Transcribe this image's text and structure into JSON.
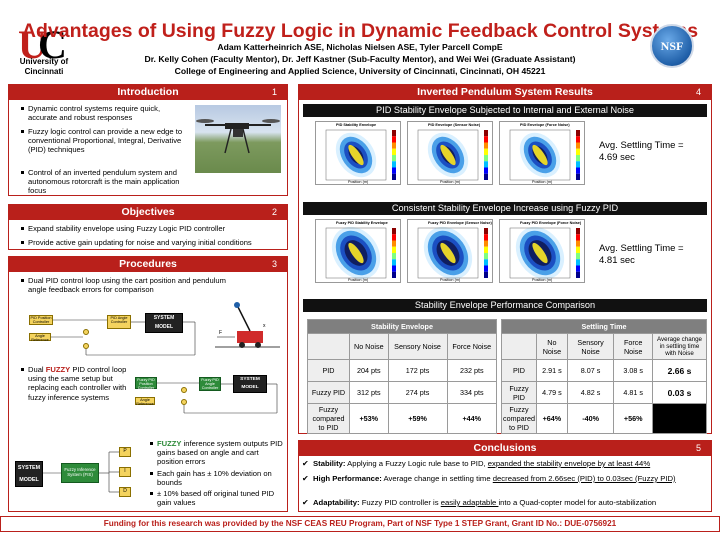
{
  "header": {
    "title": "Advantages of Using Fuzzy Logic in Dynamic Feedback Control Systems",
    "authors": "Adam Katterheinrich ASE, Nicholas Nielsen ASE, Tyler Parcell CompE",
    "mentors": "Dr. Kelly Cohen (Faculty Mentor), Dr. Jeff Kastner (Sub-Faculty Mentor), and Wei Wei (Graduate Assistant)",
    "affiliation": "College of Engineering and Applied Science, University of Cincinnati, Cincinnati, OH 45221",
    "university": "University of Cincinnati",
    "nsf_logo": "NSF"
  },
  "intro": {
    "title": "Introduction",
    "num": "1",
    "bullets": [
      "Dynamic control systems require quick, accurate and robust responses",
      "Fuzzy logic control can provide a new edge to conventional Proportional, Integral, Derivative (PID) techniques",
      "Control of an inverted pendulum system and autonomous rotorcraft is the main application focus"
    ]
  },
  "objectives": {
    "title": "Objectives",
    "num": "2",
    "bullets": [
      "Expand stability envelope using Fuzzy Logic PID controller",
      "Provide active gain updating for noise and varying initial conditions"
    ]
  },
  "procedures": {
    "title": "Procedures",
    "num": "3",
    "bullet1": "Dual PID control loop using the cart position and pendulum angle feedback errors for comparison",
    "bullet2_pre": "Dual ",
    "bullet2_fuzzy": "FUZZY",
    "bullet2_post": " PID control loop using the same setup but replacing each controller with fuzzy inference systems",
    "diagram": {
      "pid_pos": "PID Position Controller",
      "pid_angle": "PID Angle Controller",
      "angle_ref": "Angle Reference",
      "system_model": "SYSTEM MODEL",
      "fuzzy_pos": "Fuzzy PID Position Controller",
      "fuzzy_angle": "Fuzzy PID Angle Controller",
      "fuzzy_system": "Fuzzy Inference System (FIS)",
      "sym_p": "P",
      "sym_i": "I",
      "sym_d": "D"
    },
    "fuzzy_bullets": {
      "b1_fuzzy": "FUZZY",
      "b1_rest": " inference system outputs PID gains based on angle and cart position errors",
      "b2": "Each gain has ± 10% deviation on bounds",
      "b3": "± 10% based off original tuned PID gain values"
    }
  },
  "results": {
    "title": "Inverted Pendulum System Results",
    "num": "4",
    "sub1": "PID Stability Envelope Subjected to Internal and External Noise",
    "plots1": [
      "PID Stability Envelope",
      "PID Envelope (Sensor Noise)",
      "PID Envelope (Force Noise)"
    ],
    "settle1": "Avg. Settling Time = 4.69 sec",
    "sub2": "Consistent Stability Envelope Increase using Fuzzy PID",
    "plots2": [
      "Fuzzy PID Stability Envelope",
      "Fuzzy PID Envelope (Sensor Noise)",
      "Fuzzy PID Envelope (Force Noise)"
    ],
    "settle2": "Avg. Settling Time = 4.81 sec",
    "axis_x": "Position (m)",
    "axis_y": "Angle (rad)",
    "sub3": "Stability Envelope Performance Comparison",
    "table1": {
      "title": "Stability Envelope",
      "cols": [
        "No Noise",
        "Sensory Noise",
        "Force Noise"
      ],
      "rows": [
        {
          "label": "PID",
          "vals": [
            "204 pts",
            "172 pts",
            "232 pts"
          ]
        },
        {
          "label": "Fuzzy PID",
          "vals": [
            "312 pts",
            "274 pts",
            "334 pts"
          ]
        },
        {
          "label": "Fuzzy compared to PID",
          "vals": [
            "+53%",
            "+59%",
            "+44%"
          ]
        }
      ]
    },
    "table2": {
      "title": "Settling Time",
      "cols": [
        "No Noise",
        "Sensory Noise",
        "Force Noise",
        "Average change in settling time with Noise"
      ],
      "rows": [
        {
          "label": "PID",
          "vals": [
            "2.91 s",
            "8.07 s",
            "3.08 s",
            "2.66 s"
          ]
        },
        {
          "label": "Fuzzy PID",
          "vals": [
            "4.79 s",
            "4.82 s",
            "4.81 s",
            "0.03 s"
          ]
        },
        {
          "label": "Fuzzy compared to PID",
          "vals": [
            "+64%",
            "-40%",
            "+56%",
            ""
          ]
        }
      ]
    }
  },
  "conclusions": {
    "title": "Conclusions",
    "num": "5",
    "items": [
      {
        "label": "Stability:",
        "pre": " Applying a Fuzzy Logic rule base to PID, ",
        "ul": "expanded the stability envelope by at least 44%",
        "post": ""
      },
      {
        "label": "High Performance:",
        "pre": " Average change in settling time ",
        "ul": "decreased from 2.66sec (PID) to 0.03sec (Fuzzy PID)",
        "post": ""
      },
      {
        "label": "Adaptability:",
        "pre": " Fuzzy PID controller is ",
        "ul": "easily adaptable ",
        "post": "into a Quad-copter model for auto-stabilization"
      }
    ]
  },
  "funding": "Funding for this research was provided by the NSF CEAS REU Program, Part of NSF Type 1 STEP Grant, Grant ID No.: DUE-0756921",
  "colors": {
    "accent": "#b9201b",
    "table_header": "#7f7f7f"
  }
}
